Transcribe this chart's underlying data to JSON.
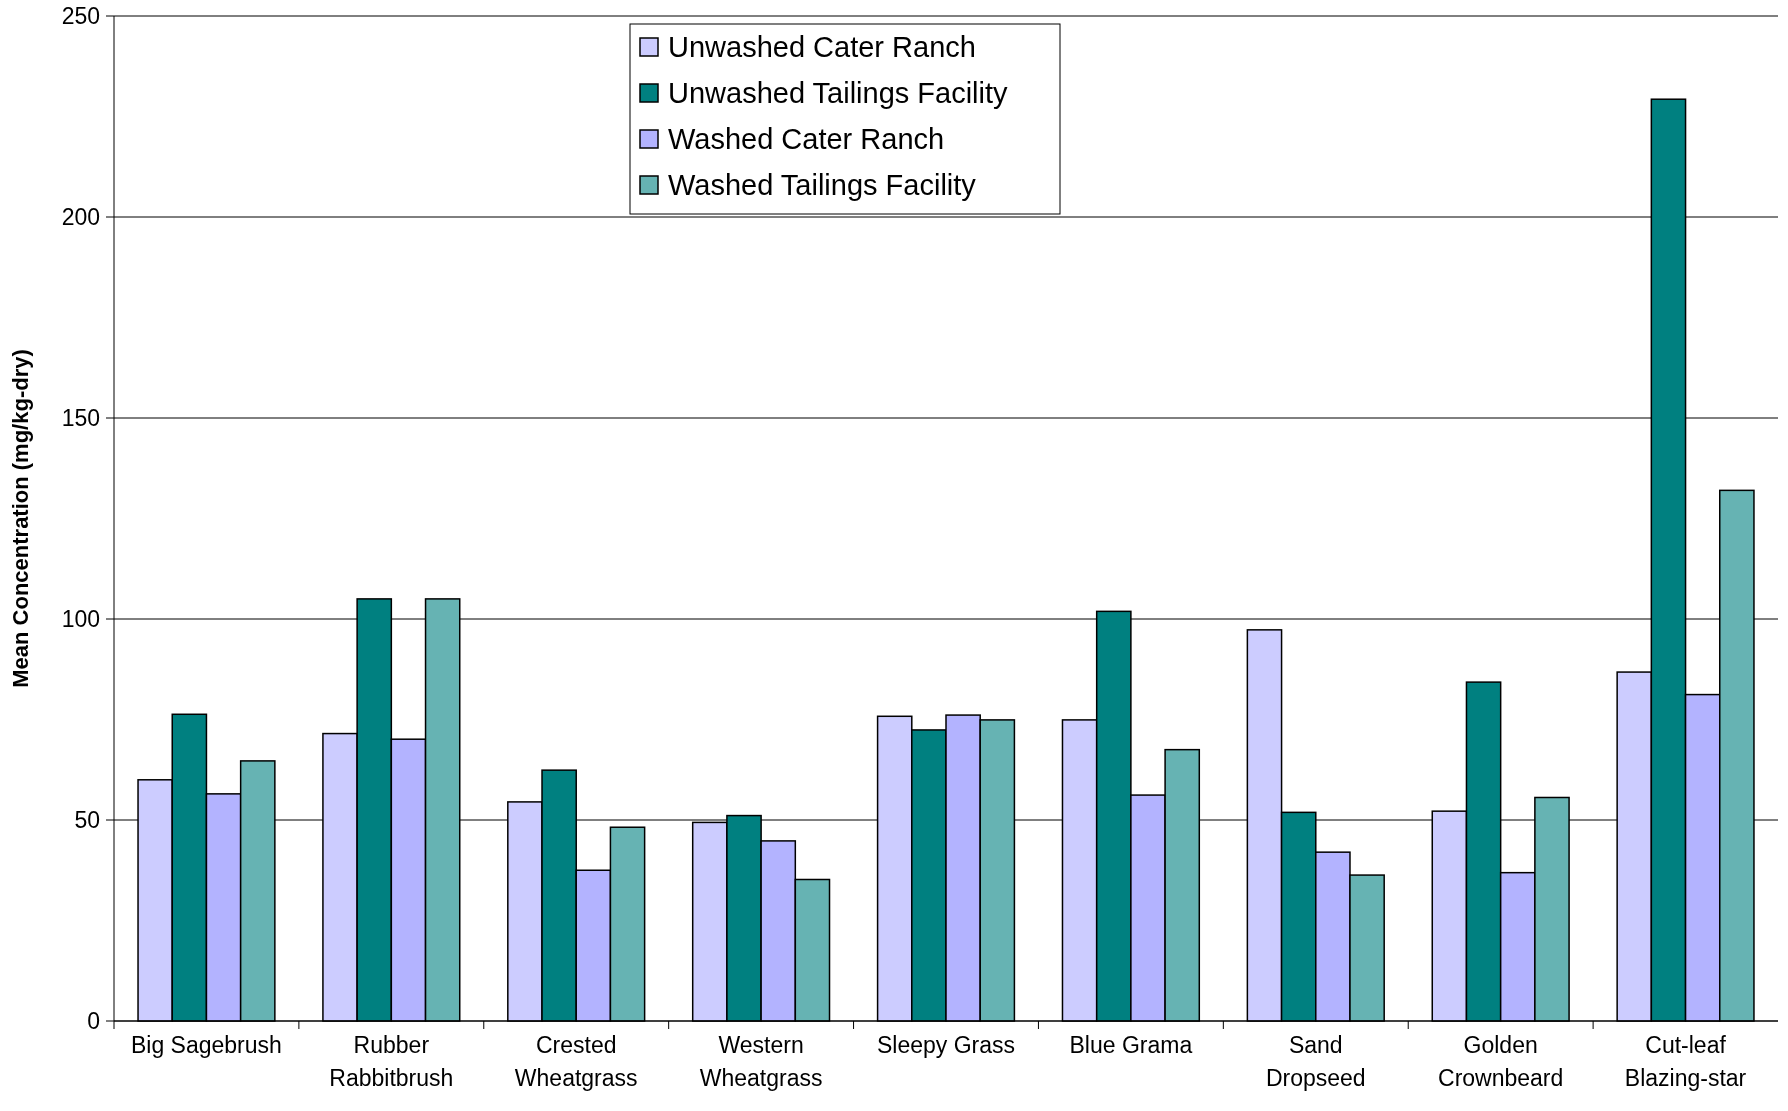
{
  "chart_data": {
    "type": "bar",
    "ylabel": "Mean Concentration (mg/kg-dry)",
    "categories": [
      "Big Sagebrush",
      "Rubber\nRabbitbrush",
      "Crested\nWheatgrass",
      "Western\nWheatgrass",
      "Sleepy Grass",
      "Blue Grama",
      "Sand\nDropseed",
      "Golden\nCrownbeard",
      "Cut-leaf\nBlazing-star"
    ],
    "series": [
      {
        "name": "Unwashed Cater Ranch",
        "color": "#ccccff",
        "values": [
          60,
          71.5,
          54.5,
          49.4,
          75.8,
          74.9,
          97.3,
          52.2,
          86.8
        ]
      },
      {
        "name": "Unwashed Tailings Facility",
        "color": "#008080",
        "values": [
          76.3,
          105,
          62.4,
          51.1,
          72.4,
          101.9,
          51.9,
          84.3,
          229.3
        ]
      },
      {
        "name": "Washed Cater Ranch",
        "color": "#b3b3ff",
        "values": [
          56.5,
          70.1,
          37.5,
          44.8,
          76.1,
          56.2,
          42,
          36.9,
          81.2
        ]
      },
      {
        "name": "Washed Tailings Facility",
        "color": "#66b3b3",
        "values": [
          64.7,
          105,
          48.2,
          35.2,
          74.9,
          67.5,
          36.3,
          55.6,
          132
        ]
      }
    ],
    "ylim": [
      0,
      250
    ],
    "yticks": [
      0,
      50,
      100,
      150,
      200,
      250
    ],
    "grid": "y",
    "legend": "top"
  }
}
